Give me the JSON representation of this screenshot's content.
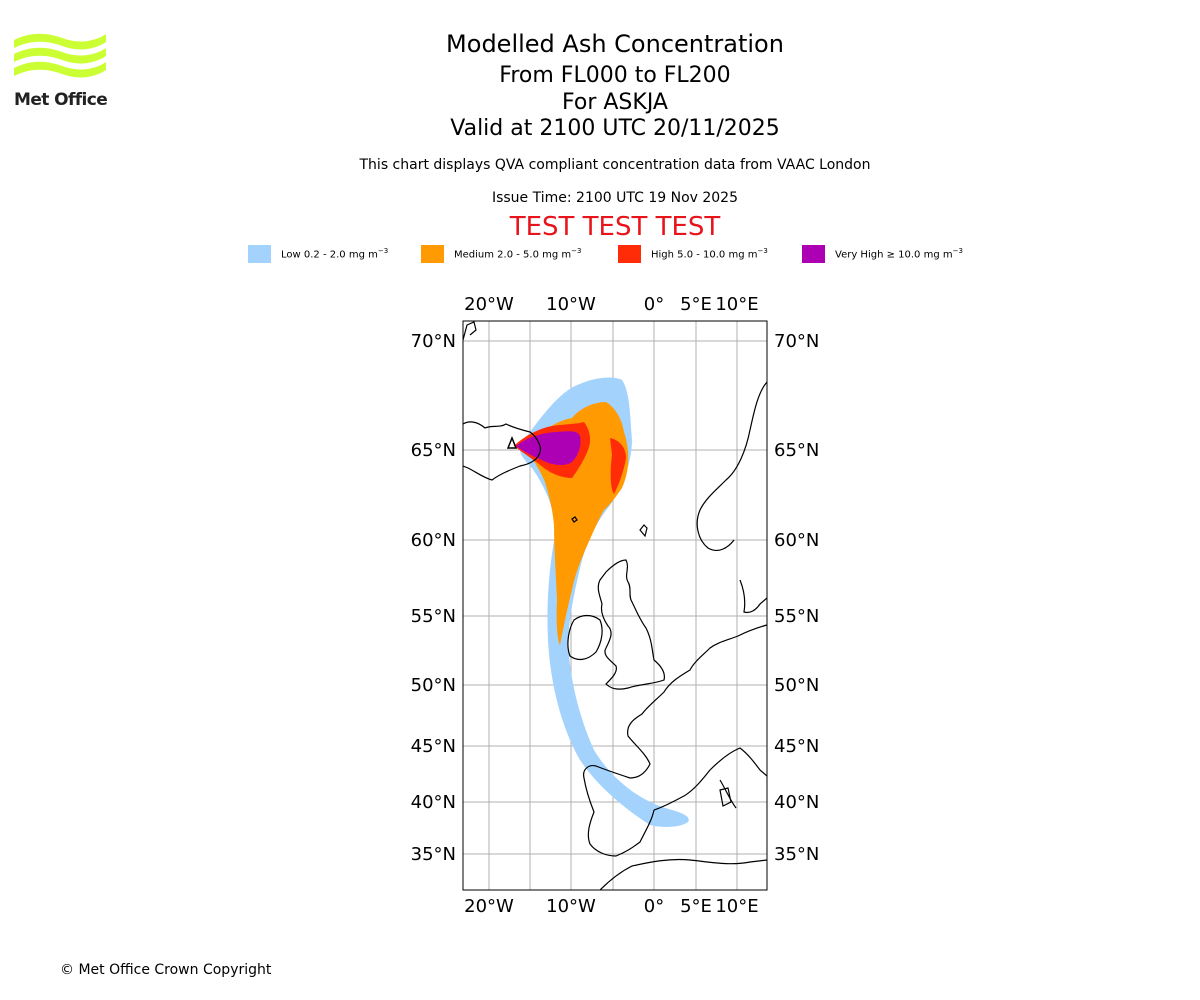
{
  "logo": {
    "name": "met-office-logo",
    "text": "Met Office"
  },
  "header": {
    "title": "Modelled Ash Concentration",
    "levels": "From FL000 to FL200",
    "volcano": "For ASKJA",
    "valid": "Valid at 2100 UTC 20/11/2025",
    "subtitle": "This chart displays QVA compliant concentration data from VAAC London",
    "issue": "Issue Time: 2100 UTC 19 Nov 2025",
    "test_banner": "TEST TEST TEST"
  },
  "legend": [
    {
      "label": "Low 0.2 - 2.0 mg m",
      "sup": "−3",
      "color": "#a3d3fd"
    },
    {
      "label": "Medium 2.0 - 5.0 mg m",
      "sup": "−3",
      "color": "#ff9a03"
    },
    {
      "label": "High 5.0 - 10.0 mg m",
      "sup": "−3",
      "color": "#ff2c07"
    },
    {
      "label": "Very High ≥ 10.0 mg m",
      "sup": "−3",
      "color": "#ad00b4"
    }
  ],
  "map": {
    "lon_labels": [
      "20°W",
      "10°W",
      "0°",
      "5°E",
      "10°E"
    ],
    "lat_labels": [
      "70°N",
      "65°N",
      "60°N",
      "55°N",
      "50°N",
      "45°N",
      "40°N",
      "35°N"
    ]
  },
  "footer": {
    "copyright": "© Met Office Crown Copyright"
  }
}
